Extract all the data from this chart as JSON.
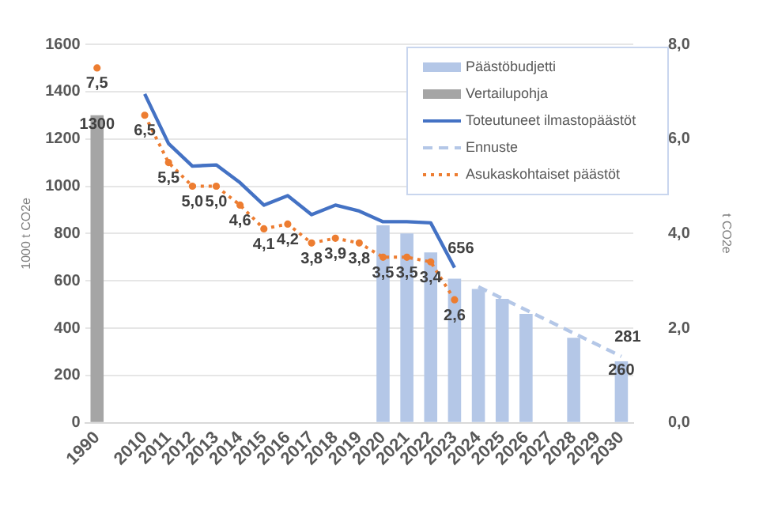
{
  "chart_data": {
    "type": "bar",
    "categories": [
      "1990",
      null,
      "2010",
      "2011",
      "2012",
      "2013",
      "2014",
      "2015",
      "2016",
      "2017",
      "2018",
      "2019",
      "2020",
      "2021",
      "2022",
      "2023",
      "2024",
      "2025",
      "2026",
      "2027",
      "2028",
      "2029",
      "2030"
    ],
    "series": [
      {
        "name": "Päästöbudjetti",
        "type": "bar",
        "color": "#b4c7e7",
        "values": [
          null,
          null,
          null,
          null,
          null,
          null,
          null,
          null,
          null,
          null,
          null,
          null,
          835,
          800,
          720,
          609,
          566,
          524,
          460,
          null,
          359,
          null,
          260
        ],
        "value_labels": [
          null,
          null,
          null,
          null,
          null,
          null,
          null,
          null,
          null,
          null,
          null,
          null,
          null,
          null,
          null,
          null,
          null,
          null,
          null,
          null,
          null,
          null,
          "260"
        ]
      },
      {
        "name": "Vertailupohja",
        "type": "bar",
        "color": "#a5a5a5",
        "values": [
          1300,
          null,
          null,
          null,
          null,
          null,
          null,
          null,
          null,
          null,
          null,
          null,
          null,
          null,
          null,
          null,
          null,
          null,
          null,
          null,
          null,
          null,
          null
        ],
        "value_labels": [
          "1300",
          null,
          null,
          null,
          null,
          null,
          null,
          null,
          null,
          null,
          null,
          null,
          null,
          null,
          null,
          null,
          null,
          null,
          null,
          null,
          null,
          null,
          null
        ]
      },
      {
        "name": "Toteutuneet ilmastopäästöt",
        "type": "line",
        "color": "#4472c4",
        "line_style": "solid",
        "marker": "none",
        "values": [
          null,
          null,
          1390,
          1180,
          1085,
          1090,
          1015,
          920,
          960,
          880,
          920,
          895,
          850,
          850,
          845,
          656,
          null,
          null,
          null,
          null,
          null,
          null,
          null
        ],
        "value_labels": [
          null,
          null,
          null,
          null,
          null,
          null,
          null,
          null,
          null,
          null,
          null,
          null,
          null,
          null,
          null,
          "656",
          null,
          null,
          null,
          null,
          null,
          null,
          null
        ]
      },
      {
        "name": "Ennuste",
        "type": "line",
        "color": "#b4c7e7",
        "line_style": "dashed",
        "marker": "none",
        "values": [
          null,
          null,
          null,
          null,
          null,
          null,
          null,
          null,
          null,
          null,
          null,
          null,
          null,
          null,
          null,
          null,
          575,
          526,
          477,
          428,
          379,
          330,
          281
        ],
        "value_labels": [
          null,
          null,
          null,
          null,
          null,
          null,
          null,
          null,
          null,
          null,
          null,
          null,
          null,
          null,
          null,
          null,
          null,
          null,
          null,
          null,
          null,
          null,
          "281"
        ]
      },
      {
        "name": "Asukaskohtaiset päästöt",
        "type": "line",
        "axis": "y2",
        "color": "#ed7d31",
        "line_style": "dotted",
        "marker": "circle",
        "values": [
          7.5,
          null,
          6.5,
          5.5,
          5.0,
          5.0,
          4.6,
          4.1,
          4.2,
          3.8,
          3.9,
          3.8,
          3.5,
          3.5,
          3.4,
          2.6,
          null,
          null,
          null,
          null,
          null,
          null,
          null
        ],
        "value_labels": [
          "7,5",
          null,
          "6,5",
          "5,5",
          "5,0",
          "5,0",
          "4,6",
          "4,1",
          "4,2",
          "3,8",
          "3,9",
          "3,8",
          "3,5",
          "3,5",
          "3,4",
          "2,6",
          null,
          null,
          null,
          null,
          null,
          null,
          null
        ]
      }
    ],
    "ylabel": "1000 t CO2e",
    "y2label": "t CO2e",
    "ylim": [
      0,
      1600
    ],
    "yticks": [
      0,
      200,
      400,
      600,
      800,
      1000,
      1200,
      1400,
      1600
    ],
    "y2lim": [
      0,
      8
    ],
    "y2ticks": [
      {
        "value": 0,
        "label": "0,0"
      },
      {
        "value": 2,
        "label": "2,0"
      },
      {
        "value": 4,
        "label": "4,0"
      },
      {
        "value": 6,
        "label": "6,0"
      },
      {
        "value": 8,
        "label": "8,0"
      }
    ],
    "grid": "y",
    "legend": "top right"
  }
}
